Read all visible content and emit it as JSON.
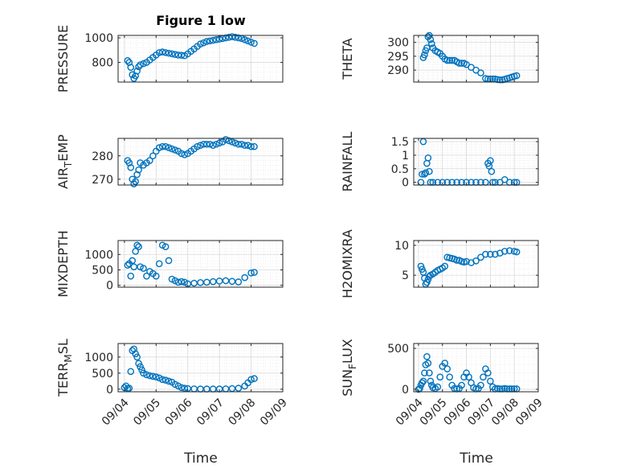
{
  "chart_data": [
    {
      "type": "scatter",
      "title": "Figure 1 low",
      "ylabel": "PRESSURE",
      "ylabel_sub": "",
      "ylabel_tail": "",
      "ylim": [
        640,
        1020
      ],
      "yticks": [
        800,
        1000
      ],
      "color": "#0072BD",
      "x": [
        0.1,
        0.15,
        0.2,
        0.25,
        0.3,
        0.35,
        0.4,
        0.45,
        0.5,
        0.6,
        0.7,
        0.8,
        0.9,
        1.0,
        1.1,
        1.2,
        1.3,
        1.4,
        1.5,
        1.6,
        1.7,
        1.8,
        1.9,
        2.0,
        2.1,
        2.2,
        2.3,
        2.4,
        2.5,
        2.6,
        2.7,
        2.8,
        2.9,
        3.0,
        3.1,
        3.2,
        3.3,
        3.4,
        3.5,
        3.6,
        3.7,
        3.8,
        3.9,
        4.0,
        4.1
      ],
      "y": [
        815,
        800,
        760,
        700,
        670,
        690,
        730,
        765,
        780,
        790,
        800,
        820,
        840,
        860,
        880,
        885,
        880,
        875,
        870,
        865,
        860,
        858,
        855,
        870,
        890,
        910,
        930,
        950,
        960,
        970,
        975,
        980,
        985,
        990,
        995,
        1000,
        1005,
        1010,
        1005,
        1000,
        995,
        985,
        975,
        965,
        955
      ]
    },
    {
      "type": "scatter",
      "title": "",
      "ylabel": "THETA",
      "ylabel_sub": "",
      "ylabel_tail": "",
      "ylim": [
        285.7,
        302.5
      ],
      "yticks": [
        290,
        295,
        300
      ],
      "color": "#0072BD",
      "x": [
        0.2,
        0.25,
        0.3,
        0.35,
        0.4,
        0.45,
        0.5,
        0.55,
        0.6,
        0.7,
        0.8,
        0.9,
        1.0,
        1.1,
        1.2,
        1.3,
        1.4,
        1.5,
        1.6,
        1.7,
        1.8,
        1.9,
        2.0,
        2.2,
        2.4,
        2.6,
        2.8,
        2.9,
        3.0,
        3.1,
        3.2,
        3.3,
        3.4,
        3.5,
        3.6,
        3.7,
        3.8,
        3.9,
        4.0,
        4.1
      ],
      "y": [
        294.5,
        295.5,
        297,
        298,
        302,
        302.5,
        301,
        299.5,
        298,
        297,
        296.5,
        296,
        295,
        294,
        293.5,
        293.5,
        293.5,
        293.5,
        293,
        292.5,
        292.5,
        292.5,
        292,
        291,
        290,
        289,
        287,
        286.8,
        286.8,
        286.8,
        286.8,
        286.6,
        286.5,
        286.5,
        286.7,
        287,
        287.2,
        287.5,
        287.8,
        288
      ]
    },
    {
      "type": "scatter",
      "title": "",
      "ylabel": "AIR",
      "ylabel_sub": "T",
      "ylabel_tail": "EMP",
      "ylim": [
        267.5,
        287.5
      ],
      "yticks": [
        270,
        280
      ],
      "color": "#0072BD",
      "x": [
        0.1,
        0.15,
        0.2,
        0.25,
        0.3,
        0.35,
        0.4,
        0.45,
        0.5,
        0.6,
        0.7,
        0.8,
        0.9,
        1.0,
        1.1,
        1.2,
        1.3,
        1.4,
        1.5,
        1.6,
        1.7,
        1.8,
        1.9,
        2.0,
        2.1,
        2.2,
        2.3,
        2.4,
        2.5,
        2.6,
        2.7,
        2.8,
        2.9,
        3.0,
        3.1,
        3.2,
        3.3,
        3.4,
        3.5,
        3.6,
        3.7,
        3.8,
        3.9,
        4.0,
        4.1
      ],
      "y": [
        278,
        277,
        275,
        270,
        268,
        269,
        272,
        274,
        277,
        276,
        277,
        278,
        280,
        282,
        283.5,
        284,
        284,
        283.5,
        283,
        282.5,
        282,
        281,
        280.5,
        281,
        282,
        283,
        284,
        284.5,
        285,
        285,
        285,
        284.5,
        285,
        285.5,
        286,
        287,
        286.5,
        286,
        285.5,
        285,
        285,
        284.5,
        284.5,
        284,
        284
      ]
    },
    {
      "type": "scatter",
      "title": "",
      "ylabel": "RAINFALL",
      "ylabel_sub": "",
      "ylabel_tail": "",
      "ylim": [
        -0.1,
        1.62
      ],
      "yticks": [
        0,
        0.5,
        1,
        1.5
      ],
      "color": "#0072BD",
      "x": [
        0.1,
        0.15,
        0.2,
        0.25,
        0.3,
        0.35,
        0.4,
        0.45,
        0.5,
        0.6,
        0.8,
        1.0,
        1.2,
        1.4,
        1.6,
        1.8,
        2.0,
        2.2,
        2.4,
        2.6,
        2.8,
        2.9,
        2.95,
        3.0,
        3.05,
        3.1,
        3.2,
        3.4,
        3.6,
        3.8,
        4.0,
        4.1
      ],
      "y": [
        0,
        0.3,
        1.5,
        0.3,
        0.35,
        0.7,
        0.9,
        0.4,
        0,
        0,
        0,
        0,
        0,
        0,
        0,
        0,
        0,
        0,
        0,
        0,
        0,
        0.7,
        0.6,
        0.8,
        0.4,
        0,
        0,
        0,
        0.1,
        0,
        0,
        0
      ]
    },
    {
      "type": "scatter",
      "title": "",
      "ylabel": "MIXDEPTH",
      "ylabel_sub": "",
      "ylabel_tail": "",
      "ylim": [
        -60,
        1450
      ],
      "yticks": [
        0,
        500,
        1000
      ],
      "color": "#0072BD",
      "x": [
        0.1,
        0.15,
        0.2,
        0.25,
        0.3,
        0.35,
        0.4,
        0.45,
        0.5,
        0.6,
        0.7,
        0.8,
        0.9,
        1.0,
        1.1,
        1.2,
        1.3,
        1.4,
        1.5,
        1.6,
        1.7,
        1.8,
        1.9,
        2.0,
        2.2,
        2.4,
        2.6,
        2.8,
        3.0,
        3.2,
        3.4,
        3.6,
        3.8,
        4.0,
        4.1
      ],
      "y": [
        650,
        700,
        300,
        800,
        600,
        1100,
        1300,
        1250,
        600,
        550,
        300,
        450,
        380,
        300,
        700,
        1300,
        1250,
        800,
        200,
        150,
        100,
        120,
        100,
        50,
        70,
        90,
        100,
        120,
        140,
        150,
        130,
        110,
        250,
        400,
        420
      ]
    },
    {
      "type": "scatter",
      "title": "",
      "ylabel": "H2OMIXRA",
      "ylabel_sub": "",
      "ylabel_tail": "",
      "ylim": [
        3,
        10.8
      ],
      "yticks": [
        5,
        10
      ],
      "color": "#0072BD",
      "x": [
        0.1,
        0.15,
        0.2,
        0.25,
        0.3,
        0.35,
        0.4,
        0.45,
        0.5,
        0.6,
        0.7,
        0.8,
        0.9,
        1.0,
        1.1,
        1.2,
        1.3,
        1.4,
        1.5,
        1.6,
        1.7,
        1.8,
        1.9,
        2.0,
        2.2,
        2.4,
        2.6,
        2.8,
        3.0,
        3.2,
        3.4,
        3.6,
        3.8,
        4.0,
        4.1
      ],
      "y": [
        6.5,
        6,
        5.5,
        4.5,
        3.5,
        3.8,
        4.3,
        4.8,
        5,
        5.2,
        5.5,
        5.8,
        6,
        6.2,
        6.5,
        8,
        7.9,
        7.8,
        7.7,
        7.5,
        7.5,
        7.3,
        7.2,
        7.3,
        7.1,
        7.4,
        8.0,
        8.5,
        8.5,
        8.5,
        8.7,
        9.0,
        9.1,
        9.0,
        8.9
      ]
    },
    {
      "type": "scatter",
      "title": "",
      "ylabel": "TERR",
      "ylabel_sub": "M",
      "ylabel_tail": "SL",
      "ylim": [
        -80,
        1420
      ],
      "yticks": [
        0,
        500,
        1000
      ],
      "color": "#0072BD",
      "x": [
        0.0,
        0.05,
        0.1,
        0.15,
        0.2,
        0.25,
        0.3,
        0.35,
        0.4,
        0.45,
        0.5,
        0.55,
        0.6,
        0.7,
        0.8,
        0.9,
        1.0,
        1.1,
        1.2,
        1.3,
        1.4,
        1.5,
        1.6,
        1.7,
        1.8,
        1.9,
        2.0,
        2.2,
        2.4,
        2.6,
        2.8,
        3.0,
        3.2,
        3.4,
        3.6,
        3.8,
        3.9,
        4.0,
        4.1
      ],
      "y": [
        50,
        100,
        20,
        30,
        550,
        1200,
        1250,
        1100,
        1000,
        800,
        700,
        600,
        500,
        450,
        420,
        400,
        380,
        350,
        300,
        280,
        250,
        220,
        150,
        100,
        50,
        30,
        20,
        10,
        5,
        5,
        5,
        5,
        10,
        20,
        30,
        100,
        200,
        300,
        330
      ]
    },
    {
      "type": "scatter",
      "title": "",
      "ylabel": "SUN",
      "ylabel_sub": "F",
      "ylabel_tail": "LUX",
      "ylim": [
        -30,
        560
      ],
      "yticks": [
        0,
        500
      ],
      "color": "#0072BD",
      "x": [
        0.0,
        0.05,
        0.1,
        0.15,
        0.2,
        0.25,
        0.3,
        0.35,
        0.4,
        0.45,
        0.5,
        0.55,
        0.6,
        0.7,
        0.8,
        0.9,
        1.0,
        1.1,
        1.2,
        1.3,
        1.4,
        1.5,
        1.6,
        1.7,
        1.8,
        1.9,
        2.0,
        2.1,
        2.2,
        2.3,
        2.4,
        2.5,
        2.6,
        2.7,
        2.8,
        2.9,
        3.0,
        3.1,
        3.2,
        3.3,
        3.4,
        3.5,
        3.6,
        3.7,
        3.8,
        3.9,
        4.0,
        4.1
      ],
      "y": [
        0,
        10,
        50,
        80,
        100,
        200,
        300,
        400,
        320,
        200,
        100,
        50,
        20,
        10,
        30,
        150,
        280,
        320,
        250,
        150,
        50,
        10,
        5,
        10,
        50,
        150,
        200,
        150,
        80,
        20,
        5,
        10,
        50,
        150,
        250,
        200,
        100,
        30,
        5,
        10,
        5,
        5,
        10,
        5,
        5,
        5,
        5,
        5
      ]
    }
  ],
  "shared_x": {
    "label": "Time",
    "lim": [
      -0.2,
      5.0
    ],
    "ticks": [
      0,
      1,
      2,
      3,
      4,
      5
    ],
    "ticklabels": [
      "09/04",
      "09/05",
      "09/06",
      "09/07",
      "09/08",
      "09/09"
    ]
  }
}
